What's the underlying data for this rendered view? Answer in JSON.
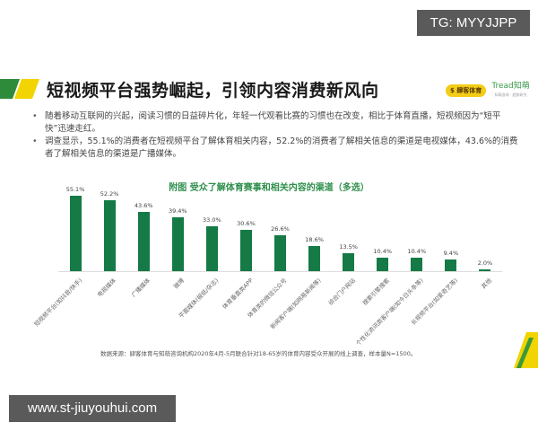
{
  "watermarks": {
    "top": "TG: MYYJJPP",
    "bottom": "www.st-jiuyouhui.com"
  },
  "header": {
    "title": "短视频平台强势崛起，引领内容消费新风向",
    "logo_left": "$ 肆客体育",
    "logo_right": "Tread知萌",
    "logo_right_sub": "知萌咨询 · 趋势研究"
  },
  "bullets": [
    "随着移动互联网的兴起，阅读习惯的日益碎片化，年轻一代观看比赛的习惯也在改变，相比于体育直播，短视频因为“短平快”迅速走红。",
    "调查显示，55.1%的消费者在短视频平台了解体育相关内容，52.2%的消费者了解相关信息的渠道是电视媒体，43.6%的消费者了解相关信息的渠道是广播媒体。"
  ],
  "colors": {
    "bar": "#157a45",
    "title_green": "#2f8f4c",
    "accent_yellow": "#f2d400"
  },
  "chart_data": {
    "type": "bar",
    "title": "附图  受众了解体育赛事和相关内容的渠道（多选）",
    "xlabel": "",
    "ylabel": "",
    "ylim": [
      0,
      60
    ],
    "grid": false,
    "legend": null,
    "categories": [
      "短视频平台(如抖音/快手)",
      "电视媒体",
      "广播媒体",
      "微博",
      "平面媒体(报纸/杂志)",
      "体育垂直类APP",
      "体育类的微信公众号",
      "新闻客户端(如网易新闻等)",
      "综合门户网站",
      "搜索引擎搜索",
      "个性化资讯类客户端(如今日头条等)",
      "长视频平台(如爱奇艺等)",
      "其他"
    ],
    "values": [
      55.1,
      52.2,
      43.6,
      39.4,
      33.0,
      30.6,
      26.6,
      18.6,
      13.5,
      10.4,
      10.4,
      9.4,
      2.0
    ],
    "value_labels": [
      "55.1%",
      "52.2%",
      "43.6%",
      "39.4%",
      "33.0%",
      "30.6%",
      "26.6%",
      "18.6%",
      "13.5%",
      "10.4%",
      "10.4%",
      "9.4%",
      "2.0%"
    ]
  },
  "source": "数据来源：肆客体育与知萌咨询机构2020年4月-5月联合针对18-65岁的体育内容受众开展的线上调查，样本量N=1500。"
}
